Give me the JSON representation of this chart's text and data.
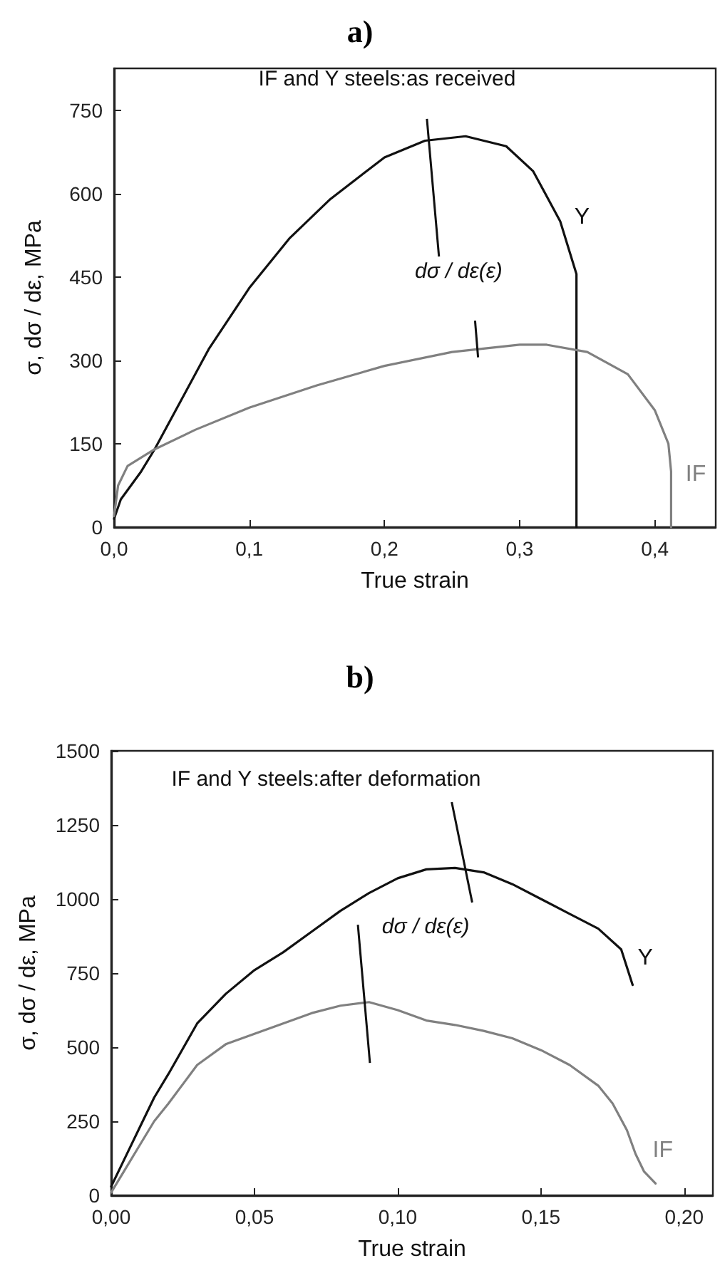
{
  "chart_data": [
    {
      "type": "line",
      "title": "a)",
      "xlabel": "True strain",
      "ylabel": "σ, dσ / dε, MPa",
      "annotations": [
        "IF and Y steels:as received",
        "dσ / dε(ε)"
      ],
      "xlim": [
        0,
        0.445
      ],
      "ylim": [
        0,
        825
      ],
      "xticks": [
        {
          "value": 0,
          "label": "0,0"
        },
        {
          "value": 0.1,
          "label": "0,1"
        },
        {
          "value": 0.2,
          "label": "0,2"
        },
        {
          "value": 0.3,
          "label": "0,3"
        },
        {
          "value": 0.4,
          "label": "0,4"
        }
      ],
      "yticks": [
        0,
        150,
        300,
        450,
        600,
        750
      ],
      "grid": false,
      "legend": false,
      "marker": "none",
      "line_style": "solid",
      "series": [
        {
          "name": "Y",
          "color": "#111111",
          "x": [
            0,
            0.005,
            0.02,
            0.03,
            0.05,
            0.07,
            0.1,
            0.13,
            0.16,
            0.2,
            0.23,
            0.26,
            0.29,
            0.31,
            0.33,
            0.342,
            0.342
          ],
          "values": [
            15,
            50,
            100,
            140,
            230,
            320,
            430,
            520,
            590,
            665,
            695,
            703,
            685,
            640,
            550,
            455,
            0
          ]
        },
        {
          "name": "IF",
          "color": "#808080",
          "x": [
            0,
            0.003,
            0.01,
            0.03,
            0.06,
            0.1,
            0.15,
            0.2,
            0.25,
            0.3,
            0.32,
            0.35,
            0.38,
            0.4,
            0.41,
            0.412,
            0.412
          ],
          "values": [
            20,
            75,
            110,
            140,
            175,
            215,
            255,
            290,
            315,
            328,
            328,
            315,
            275,
            210,
            150,
            100,
            0
          ]
        }
      ]
    },
    {
      "type": "line",
      "title": "b)",
      "xlabel": "True strain",
      "ylabel": "σ, dσ / dε, MPa",
      "annotations": [
        "IF and Y steels:after deformation",
        "dσ / dε(ε)"
      ],
      "xlim": [
        0,
        0.21
      ],
      "ylim": [
        0,
        1500
      ],
      "xticks": [
        {
          "value": 0,
          "label": "0,00"
        },
        {
          "value": 0.05,
          "label": "0,05"
        },
        {
          "value": 0.1,
          "label": "0,10"
        },
        {
          "value": 0.15,
          "label": "0,15"
        },
        {
          "value": 0.2,
          "label": "0,20"
        }
      ],
      "yticks": [
        0,
        250,
        500,
        750,
        1000,
        1250,
        1500
      ],
      "grid": false,
      "legend": false,
      "marker": "none",
      "line_style": "solid",
      "series": [
        {
          "name": "Y",
          "color": "#111111",
          "x": [
            0,
            0.005,
            0.01,
            0.015,
            0.02,
            0.03,
            0.04,
            0.05,
            0.06,
            0.07,
            0.08,
            0.09,
            0.1,
            0.11,
            0.12,
            0.13,
            0.14,
            0.15,
            0.16,
            0.17,
            0.178,
            0.182
          ],
          "values": [
            30,
            130,
            230,
            330,
            410,
            580,
            680,
            760,
            820,
            890,
            960,
            1020,
            1070,
            1100,
            1105,
            1090,
            1050,
            1000,
            950,
            900,
            830,
            710
          ]
        },
        {
          "name": "IF",
          "color": "#808080",
          "x": [
            0,
            0.005,
            0.01,
            0.015,
            0.02,
            0.03,
            0.04,
            0.05,
            0.06,
            0.07,
            0.08,
            0.09,
            0.1,
            0.11,
            0.12,
            0.13,
            0.14,
            0.15,
            0.16,
            0.17,
            0.175,
            0.18,
            0.183,
            0.186,
            0.19
          ],
          "values": [
            10,
            90,
            170,
            250,
            310,
            440,
            510,
            545,
            580,
            615,
            640,
            652,
            625,
            590,
            575,
            555,
            530,
            490,
            440,
            370,
            310,
            220,
            140,
            80,
            40
          ]
        }
      ]
    }
  ]
}
